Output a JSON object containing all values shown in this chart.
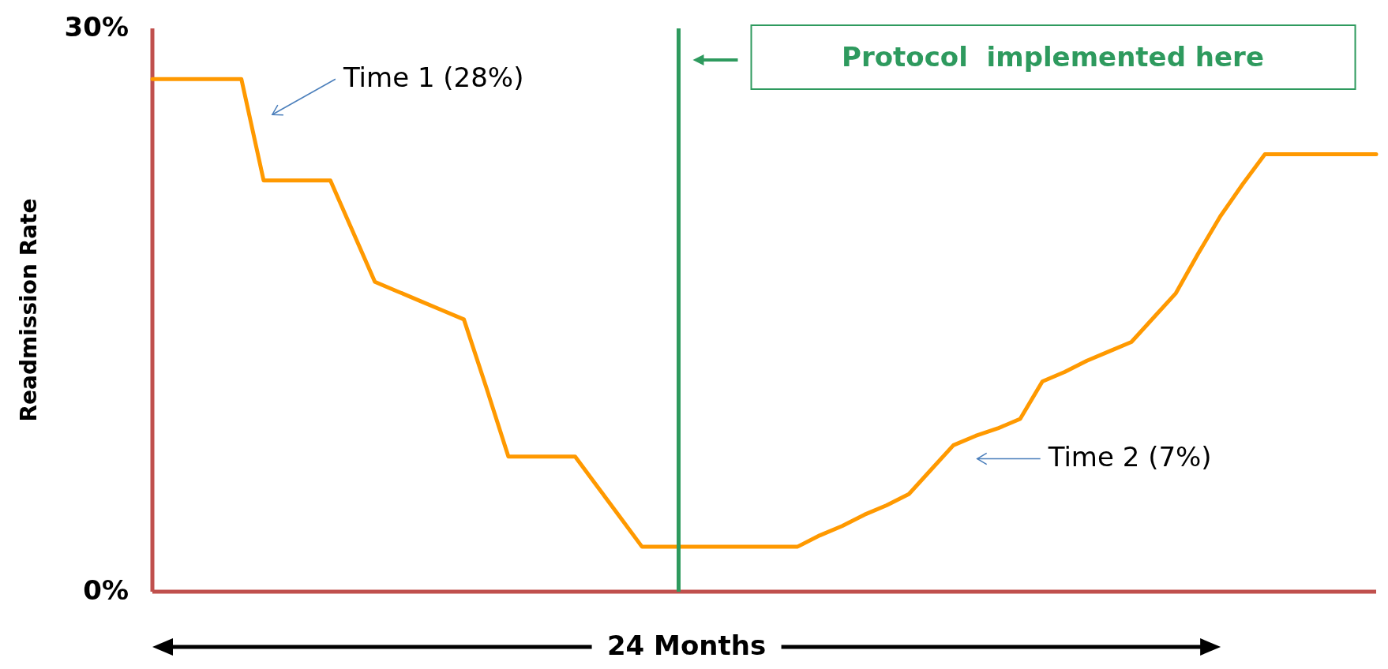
{
  "chart_data": {
    "type": "line",
    "xlabel": "24 Months",
    "ylabel": "Readmission Rate",
    "categories": [
      null,
      null,
      null,
      null,
      null,
      null,
      null,
      null,
      null,
      null,
      null,
      null,
      null,
      null,
      null,
      null,
      null,
      null,
      null,
      null,
      null,
      null,
      null,
      null,
      null,
      null,
      null,
      null,
      null,
      null,
      null,
      null,
      null,
      null,
      null,
      null,
      null,
      null,
      null,
      null,
      null,
      null,
      null,
      null,
      null,
      null,
      null,
      null,
      null,
      null,
      null,
      null,
      null,
      null,
      null,
      null
    ],
    "series": [
      {
        "color": "#ff9900",
        "values": [
          27.3,
          27.3,
          27.3,
          27.3,
          27.3,
          21.9,
          21.9,
          21.9,
          21.9,
          19.2,
          16.5,
          16.0,
          15.5,
          15.0,
          14.5,
          10.9,
          7.2,
          7.2,
          7.2,
          7.2,
          5.6,
          4.0,
          2.4,
          2.4,
          2.4,
          2.4,
          2.4,
          2.4,
          2.4,
          2.4,
          3.0,
          3.5,
          4.1,
          4.6,
          5.2,
          6.5,
          7.8,
          8.3,
          8.7,
          9.2,
          11.2,
          11.7,
          12.3,
          12.8,
          13.3,
          14.6,
          15.9,
          18.0,
          20.0,
          21.7,
          23.3,
          23.3,
          23.3,
          23.3,
          23.3,
          23.3
        ]
      }
    ],
    "ylim": [
      0,
      30
    ],
    "yticks": [
      {
        "value": 0,
        "label": "0%"
      },
      {
        "value": 30,
        "label": "30%"
      }
    ],
    "tick_labels": "y",
    "annotations": [
      "Time 1 (28%)",
      "Time 2 (7%)",
      "Protocol  implemented here"
    ]
  }
}
